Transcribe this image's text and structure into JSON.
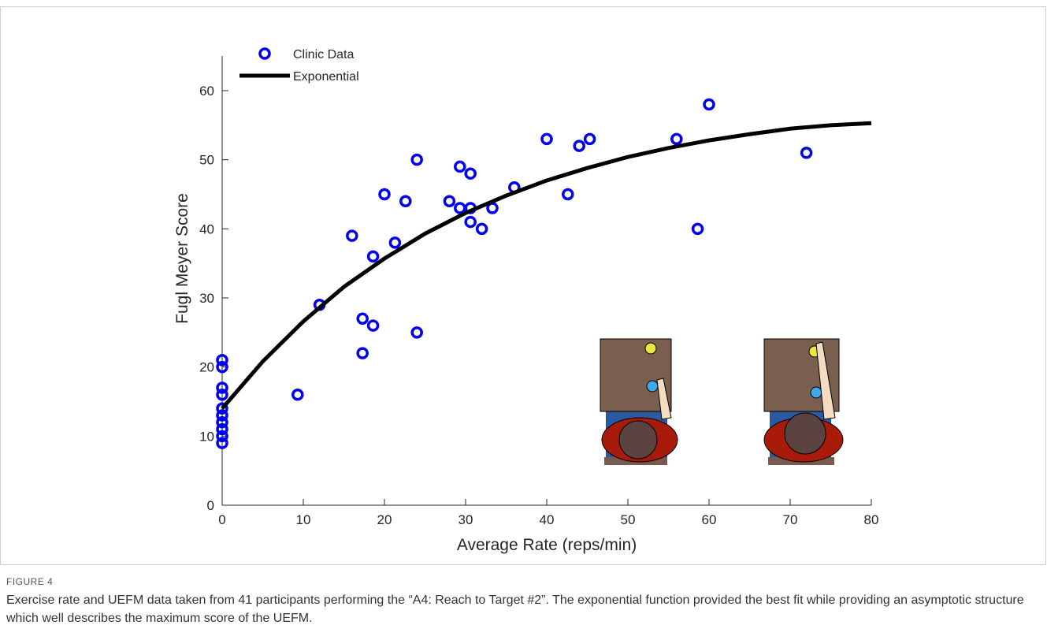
{
  "chart_data": {
    "type": "scatter",
    "xlabel": "Average Rate (reps/min)",
    "ylabel": "Fugl Meyer Score",
    "xlim": [
      0,
      80
    ],
    "ylim": [
      0,
      65
    ],
    "xticks": [
      0,
      10,
      20,
      30,
      40,
      50,
      60,
      70,
      80
    ],
    "yticks": [
      0,
      10,
      20,
      30,
      40,
      50,
      60
    ],
    "legend": "upper left",
    "series": [
      {
        "name": "Clinic Data",
        "style": "marker",
        "color": "#0000ee",
        "x": [
          0,
          0,
          0,
          0,
          0,
          0,
          0,
          0,
          0,
          0,
          9.3,
          12,
          16,
          17.3,
          17.3,
          18.6,
          18.6,
          20,
          21.3,
          22.6,
          24,
          24,
          28,
          29.3,
          29.3,
          30.6,
          30.6,
          30.6,
          32,
          33.3,
          36,
          40,
          42.6,
          44,
          45.3,
          56,
          58.6,
          60,
          72
        ],
        "values": [
          21,
          20,
          17,
          16,
          14,
          13,
          12,
          11,
          10,
          9,
          16,
          29,
          39,
          27,
          22,
          36,
          26,
          45,
          38,
          44,
          50,
          25,
          44,
          49,
          43,
          48,
          43,
          41,
          40,
          43,
          46,
          53,
          45,
          52,
          53,
          53,
          40,
          58,
          51
        ]
      },
      {
        "name": "Exponential",
        "style": "line",
        "color": "#000000",
        "x": [
          0,
          5,
          10,
          15,
          20,
          25,
          30,
          35,
          40,
          45,
          50,
          55,
          60,
          65,
          70,
          75,
          80
        ],
        "values": [
          14,
          20.8,
          26.6,
          31.6,
          35.7,
          39.3,
          42.3,
          44.8,
          47.0,
          48.8,
          50.4,
          51.7,
          52.8,
          53.7,
          54.5,
          55.0,
          55.3
        ]
      }
    ]
  },
  "figure": {
    "label": "FIGURE 4",
    "caption": "Exercise rate and UEFM data taken from 41 participants performing the “A4: Reach to Target #2”. The exponential function provided the best fit while providing an asymptotic structure which well describes the maximum score of the UEFM."
  }
}
